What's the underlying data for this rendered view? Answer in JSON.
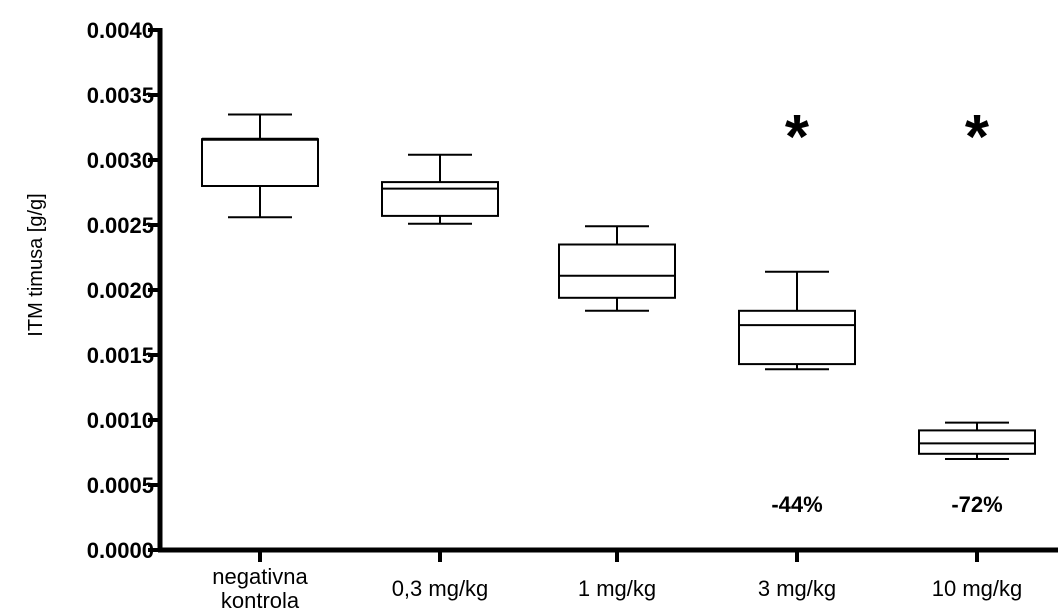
{
  "chart_data": {
    "type": "box",
    "title": "",
    "xlabel": "",
    "ylabel": "ITM timusa [g/g]",
    "ylim": [
      0,
      0.004
    ],
    "yticks": [
      "0.0000",
      "0.0005",
      "0.0010",
      "0.0015",
      "0.0020",
      "0.0025",
      "0.0030",
      "0.0035",
      "0.0040"
    ],
    "grid": false,
    "categories": [
      {
        "line1": "negativna",
        "line2": "kontrola"
      },
      {
        "line1": "0,3 mg/kg",
        "line2": ""
      },
      {
        "line1": "1 mg/kg",
        "line2": ""
      },
      {
        "line1": "3 mg/kg",
        "line2": ""
      },
      {
        "line1": "10 mg/kg",
        "line2": ""
      }
    ],
    "boxes": [
      {
        "min": 0.00256,
        "q1": 0.0028,
        "median": 0.00316,
        "q3": 0.00316,
        "max": 0.00335
      },
      {
        "min": 0.00251,
        "q1": 0.00257,
        "median": 0.00278,
        "q3": 0.00283,
        "max": 0.00304
      },
      {
        "min": 0.00184,
        "q1": 0.00194,
        "median": 0.00211,
        "q3": 0.00235,
        "max": 0.00249
      },
      {
        "min": 0.00139,
        "q1": 0.00143,
        "median": 0.00173,
        "q3": 0.00184,
        "max": 0.00214
      },
      {
        "min": 0.0007,
        "q1": 0.00074,
        "median": 0.00082,
        "q3": 0.00092,
        "max": 0.00098
      }
    ],
    "annotations": [
      {
        "category_index": 3,
        "significance": "*",
        "change": "-44%"
      },
      {
        "category_index": 4,
        "significance": "*",
        "change": "-72%"
      }
    ]
  }
}
